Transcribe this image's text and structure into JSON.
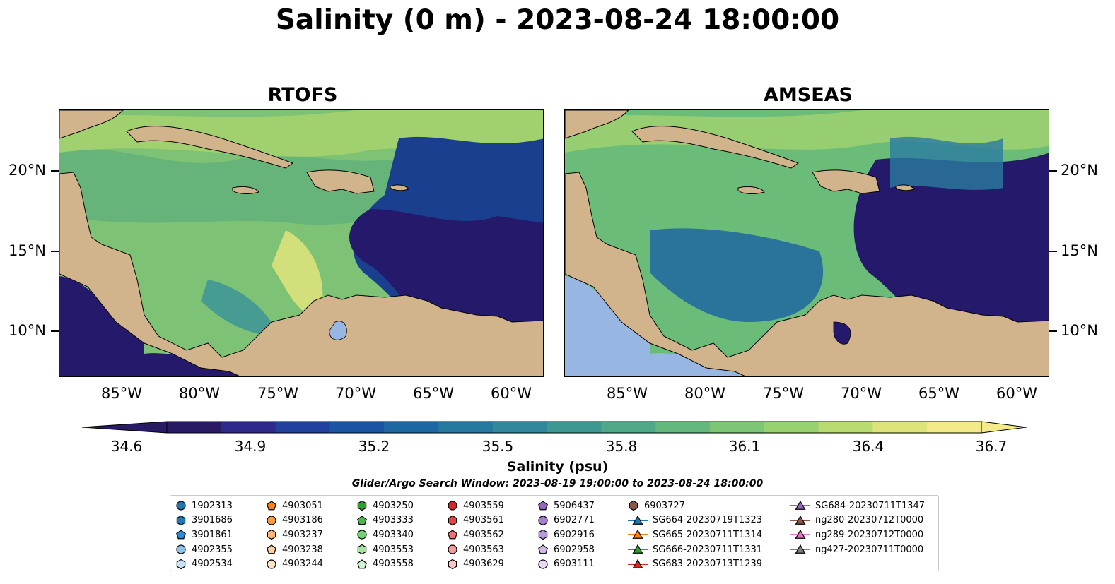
{
  "title": "Salinity (0 m) - 2023-08-24 18:00:00",
  "panels": [
    {
      "title": "RTOFS"
    },
    {
      "title": "AMSEAS"
    }
  ],
  "lon_ticks": [
    "85°W",
    "80°W",
    "75°W",
    "70°W",
    "65°W",
    "60°W"
  ],
  "lat_ticks": [
    "20°N",
    "15°N",
    "10°N"
  ],
  "colorbar": {
    "title": "Salinity (psu)",
    "ticks": [
      "34.6",
      "34.9",
      "35.2",
      "35.5",
      "35.8",
      "36.1",
      "36.4",
      "36.7"
    ],
    "colors": [
      "#2a1a63",
      "#2d2a8a",
      "#22409e",
      "#1b55a2",
      "#1f67a2",
      "#27789f",
      "#31889a",
      "#3e9892",
      "#4fa888",
      "#64b87e",
      "#7cc676",
      "#98d170",
      "#b8dc70",
      "#dde57a",
      "#f5ea8a"
    ]
  },
  "search_window": "Glider/Argo Search Window: 2023-08-19 19:00:00 to 2023-08-24 18:00:00",
  "colors": {
    "land": "#d2b48c",
    "lake": "#97b6e2",
    "deep_ocean": "#25196b",
    "frame": "#000000"
  },
  "legend": [
    [
      {
        "label": "1902313",
        "marker": "circle",
        "color": "#1f77b4"
      },
      {
        "label": "3901686",
        "marker": "hexagon",
        "color": "#1f77b4"
      },
      {
        "label": "3901861",
        "marker": "pentagon",
        "color": "#2b8ad6"
      },
      {
        "label": "4902355",
        "marker": "circle",
        "color": "#8fc2ea"
      },
      {
        "label": "4902534",
        "marker": "hexagon",
        "color": "#c6e2f7"
      }
    ],
    [
      {
        "label": "4903051",
        "marker": "pentagon",
        "color": "#ff7f0e"
      },
      {
        "label": "4903186",
        "marker": "circle",
        "color": "#ff9b3d"
      },
      {
        "label": "4903237",
        "marker": "hexagon",
        "color": "#ffb673"
      },
      {
        "label": "4903238",
        "marker": "pentagon",
        "color": "#ffcfa3"
      },
      {
        "label": "4903244",
        "marker": "circle",
        "color": "#ffe2c6"
      }
    ],
    [
      {
        "label": "4903250",
        "marker": "hexagon",
        "color": "#2ca02c"
      },
      {
        "label": "4903333",
        "marker": "pentagon",
        "color": "#4cb84c"
      },
      {
        "label": "4903340",
        "marker": "circle",
        "color": "#76d076"
      },
      {
        "label": "4903553",
        "marker": "hexagon",
        "color": "#a6e4a6"
      },
      {
        "label": "4903558",
        "marker": "pentagon",
        "color": "#d2f4d2"
      }
    ],
    [
      {
        "label": "4903559",
        "marker": "circle",
        "color": "#d62728"
      },
      {
        "label": "4903561",
        "marker": "hexagon",
        "color": "#e2454a"
      },
      {
        "label": "4903562",
        "marker": "pentagon",
        "color": "#f06d72"
      },
      {
        "label": "4903563",
        "marker": "circle",
        "color": "#f79a9c"
      },
      {
        "label": "4903629",
        "marker": "hexagon",
        "color": "#fcc5c5"
      }
    ],
    [
      {
        "label": "5906437",
        "marker": "pentagon",
        "color": "#9467bd"
      },
      {
        "label": "6902771",
        "marker": "circle",
        "color": "#a67fcf"
      },
      {
        "label": "6902916",
        "marker": "hexagon",
        "color": "#b899dd"
      },
      {
        "label": "6902958",
        "marker": "pentagon",
        "color": "#d0b8ea"
      },
      {
        "label": "6903111",
        "marker": "circle",
        "color": "#e7d8f5"
      }
    ],
    [
      {
        "label": "6903727",
        "marker": "hexagon",
        "color": "#8c564b"
      },
      {
        "label": "SG664-20230719T1323",
        "marker": "triangle-line",
        "color": "#1f77b4"
      },
      {
        "label": "SG665-20230711T1314",
        "marker": "triangle-line",
        "color": "#ff7f0e"
      },
      {
        "label": "SG666-20230711T1331",
        "marker": "triangle-line",
        "color": "#2ca02c"
      },
      {
        "label": "SG683-20230713T1239",
        "marker": "triangle-line",
        "color": "#d62728"
      }
    ],
    [
      {
        "label": "SG684-20230711T1347",
        "marker": "triangle-line",
        "color": "#9467bd"
      },
      {
        "label": "ng280-20230712T0000",
        "marker": "triangle-line",
        "color": "#8c564b"
      },
      {
        "label": "ng289-20230712T0000",
        "marker": "triangle-line",
        "color": "#e377c2"
      },
      {
        "label": "ng427-20230711T0000",
        "marker": "triangle-line",
        "color": "#7f7f7f"
      }
    ]
  ]
}
